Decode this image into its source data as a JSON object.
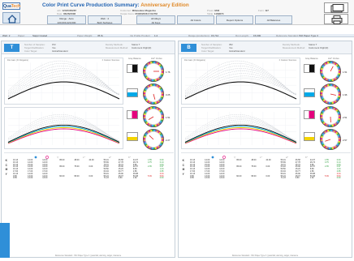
{
  "app": {
    "logo_a": "Qua",
    "logo_b": "Tech"
  },
  "header": {
    "title": "Color Print Curve Production Summary:",
    "edition": "Anniversary Edition",
    "job_label": "Job:",
    "job": "12345/35287",
    "customer_label": "Customer:",
    "customer": "Milwaukee Magazine",
    "press_label": "Press:",
    "press": "M46",
    "form_label": "Form:",
    "form": "3/7",
    "date_label": "Date:",
    "date": "06/26/2008",
    "output_label": "Output Form:",
    "output_date": "05/28/2008 2:09 PM",
    "table_label": "Table:",
    "table": "1189673"
  },
  "toggles": [
    {
      "label": "Range : Auto",
      "value": "220,600-420,600"
    },
    {
      "label": "Web : 2",
      "value": "Both Surfaces"
    },
    {
      "label": "All Alleys",
      "value": "All Keys"
    },
    {
      "label": "All Colors",
      "value": ""
    },
    {
      "label": "Report Options",
      "value": ""
    },
    {
      "label": "All Balances",
      "value": ""
    }
  ],
  "info_bar": {
    "web": "Web: 2",
    "paper_label": "Paper:",
    "paper": "Sappi Coated",
    "weight_label": "Paper Weight:",
    "weight": "35 lb.",
    "ink_label": "Ink Profile Product:",
    "ink": "1.2",
    "range_label": "Range (production):",
    "range": "15,712",
    "run_label": "Run Length:",
    "run": "15,000",
    "ref_label": "Reference Standard:",
    "ref": "ISO Paper Type 3"
  },
  "sides": [
    {
      "name": "top",
      "icon": "T",
      "n_label": "Number of Samples:",
      "n": "972",
      "ref_label": "Target Modification:",
      "ref": "Yes",
      "ct_label": "Color Target:",
      "ct": "GlobalStandard",
      "dm_label": "Density Methods:",
      "dm": "Status T",
      "mm_label": "Measurement Method:",
      "mm": "Instrument Flight(0)",
      "dg_title": "Dot Gain (% Dotgains)",
      "dg_sub": "± Custom Sources",
      "gray_title": "Gray Balance",
      "gray_sub": "Δ E* Circles",
      "gauges": [
        "1.76",
        "3.25",
        "1.51",
        "2.27"
      ],
      "table": [
        [
          "K",
          "16.13",
          "14.00",
          "14.00",
          "",
          "95.00",
          "48.00",
          "44.00",
          "56.01",
          "46.58",
          "44.37",
          "1.55",
          "0.00"
        ],
        [
          "",
          "16.13",
          "14.00",
          "14.00",
          "",
          "",
          "",
          "",
          "55.69",
          "27.78",
          "26.74",
          "0.75",
          "0.14"
        ],
        [
          "C",
          "16.13",
          "15.00",
          "14.00",
          "",
          "",
          "",
          "",
          "79.72",
          "15.72",
          "9.86",
          "",
          "0.84"
        ],
        [
          "",
          "16.13",
          "14.00",
          "14.00",
          "",
          "95.00",
          "75.00",
          "0.00",
          "53.18",
          "25.90",
          "22.57",
          "2.35",
          "0.97"
        ],
        [
          "M",
          "16.13",
          "14.00",
          "14.00",
          "",
          "",
          "",
          "",
          "59.50",
          "15.22",
          "8.69",
          "",
          "1.24"
        ],
        [
          "",
          "17.00",
          "17.00",
          "17.00",
          "",
          "",
          "",
          "",
          "60.04",
          "30.77",
          "2.86",
          "",
          "2.95"
        ],
        [
          "Y",
          "16.13",
          "14.00",
          "14.00",
          "",
          "",
          "",
          "",
          "56.91",
          "25.90",
          "35.88",
          "",
          "3.34"
        ],
        [
          "",
          "9.65",
          "13.00",
          "14.00",
          "",
          "60.00",
          "95.00",
          "0.00",
          "56.24",
          "48.07",
          "50.98",
          "5.39",
          "5.84"
        ],
        [
          "",
          "9.65",
          "13.00",
          "13.00",
          "",
          "",
          "",
          "",
          "71.23",
          "3.80",
          "1.62",
          "",
          "0.00"
        ]
      ]
    },
    {
      "name": "bottom",
      "icon": "B",
      "n_label": "Number of Samples:",
      "n": "352",
      "ref_label": "Target Modification:",
      "ref": "Yes",
      "ct_label": "Color Target:",
      "ct": "GlobalStandard",
      "dm_label": "Density Methods:",
      "dm": "Status T",
      "mm_label": "Measurement Method:",
      "mm": "Instrument Flight(0)",
      "dg_title": "Dot Gain (% Dotgains)",
      "dg_sub": "± Custom Sources",
      "gray_title": "Gray Balance",
      "gray_sub": "Δ E* Circles",
      "gauges": [
        "1.51",
        "1.96",
        "2.51",
        "2.57"
      ],
      "table": [
        [
          "K",
          "16.13",
          "14.00",
          "14.00",
          "",
          "95.00",
          "48.00",
          "44.00",
          "56.01",
          "46.58",
          "44.37",
          "1.55",
          "0.00"
        ],
        [
          "",
          "16.13",
          "14.00",
          "14.00",
          "",
          "",
          "",
          "",
          "55.69",
          "27.78",
          "26.74",
          "0.75",
          "0.14"
        ],
        [
          "C",
          "16.13",
          "15.00",
          "14.00",
          "",
          "",
          "",
          "",
          "79.72",
          "15.72",
          "9.86",
          "",
          "0.84"
        ],
        [
          "",
          "16.13",
          "14.00",
          "14.00",
          "",
          "95.00",
          "75.00",
          "0.00",
          "53.18",
          "25.90",
          "22.57",
          "2.35",
          "0.97"
        ],
        [
          "M",
          "16.13",
          "14.00",
          "14.00",
          "",
          "",
          "",
          "",
          "59.50",
          "15.22",
          "8.69",
          "",
          "1.24"
        ],
        [
          "",
          "17.00",
          "17.00",
          "17.00",
          "",
          "",
          "",
          "",
          "60.04",
          "30.77",
          "2.86",
          "",
          "2.95"
        ],
        [
          "Y",
          "16.13",
          "14.00",
          "14.00",
          "",
          "",
          "",
          "",
          "56.91",
          "25.90",
          "35.88",
          "",
          "3.34"
        ],
        [
          "",
          "9.65",
          "13.00",
          "14.00",
          "",
          "60.00",
          "95.00",
          "0.00",
          "56.24",
          "48.07",
          "50.98",
          "5.39",
          "5.84"
        ],
        [
          "",
          "9.65",
          "13.00",
          "13.00",
          "",
          "",
          "",
          "",
          "71.23",
          "3.80",
          "1.62",
          "",
          "0.00"
        ]
      ]
    }
  ],
  "footer": "Reference Standard : ISO Paper Type 3  |  pass/fail, warning, target, tolerance",
  "colors": {
    "accent": "#2465b3",
    "edition": "#e08a2a",
    "cyan": "#00a9e8",
    "magenta": "#e4007c",
    "yellow": "#f4d400",
    "black": "#111111"
  }
}
